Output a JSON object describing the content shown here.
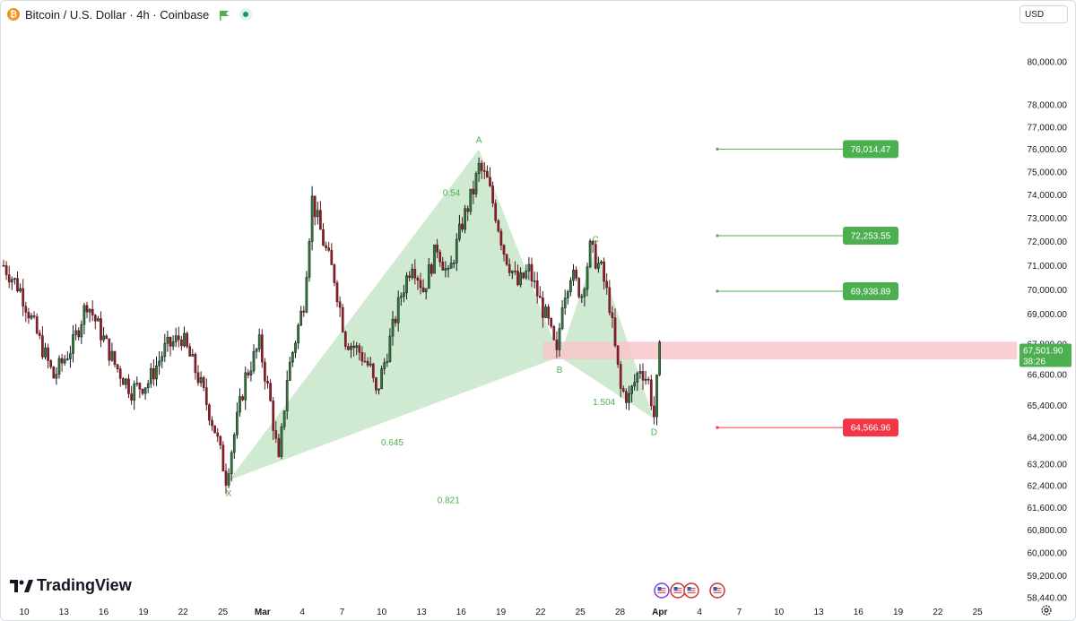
{
  "header": {
    "symbol_title": "Bitcoin / U.S. Dollar · 4h · Coinbase",
    "btc_icon": "bitcoin-icon",
    "flag_icon": "flag-icon",
    "live_icon": "live-status-icon",
    "currency": "USD"
  },
  "branding": {
    "logo_text": "TradingView"
  },
  "colors": {
    "up": "#089981",
    "down": "#f23645",
    "pattern_fill": "#c8e6c9",
    "pattern_text": "#4caf50",
    "target_green": "#4caf50",
    "stop_red": "#f23645",
    "zone": "#f8c7cc"
  },
  "chart_data": {
    "type": "candlestick",
    "title": "Bitcoin / U.S. Dollar · 4h · Coinbase",
    "y_axis": {
      "scale": "log",
      "ticks": [
        "80,000.00",
        "78,000.00",
        "77,000.00",
        "76,000.00",
        "75,000.00",
        "74,000.00",
        "73,000.00",
        "72,000.00",
        "71,000.00",
        "70,000.00",
        "69,000.00",
        "67,800.00",
        "66,600.00",
        "65,400.00",
        "64,200.00",
        "63,200.00",
        "62,400.00",
        "61,600.00",
        "60,800.00",
        "60,000.00",
        "59,200.00",
        "58,440.00"
      ]
    },
    "x_axis": {
      "ticks": [
        "10",
        "13",
        "16",
        "19",
        "22",
        "25",
        "Mar",
        "4",
        "7",
        "10",
        "13",
        "16",
        "19",
        "22",
        "25",
        "28",
        "Apr",
        "4",
        "7",
        "10",
        "13",
        "16",
        "19",
        "22",
        "25"
      ],
      "bold_ticks": [
        "Mar",
        "Apr"
      ]
    },
    "price_path": [
      [
        0,
        71000
      ],
      [
        6,
        70000
      ],
      [
        12,
        68200
      ],
      [
        18,
        66500
      ],
      [
        25,
        67800
      ],
      [
        30,
        69500
      ],
      [
        36,
        68000
      ],
      [
        40,
        67000
      ],
      [
        46,
        66000
      ],
      [
        52,
        66300
      ],
      [
        58,
        67600
      ],
      [
        64,
        68100
      ],
      [
        70,
        66500
      ],
      [
        76,
        64500
      ],
      [
        80,
        62700
      ],
      [
        81,
        63200
      ],
      [
        87,
        66500
      ],
      [
        92,
        67800
      ],
      [
        96,
        65500
      ],
      [
        99,
        63200
      ],
      [
        102,
        66500
      ],
      [
        108,
        69500
      ],
      [
        111,
        73800
      ],
      [
        115,
        72000
      ],
      [
        119,
        70500
      ],
      [
        123,
        68000
      ],
      [
        128,
        67500
      ],
      [
        132,
        66800
      ],
      [
        134,
        65800
      ],
      [
        138,
        67500
      ],
      [
        143,
        69800
      ],
      [
        147,
        71200
      ],
      [
        151,
        70000
      ],
      [
        156,
        71800
      ],
      [
        160,
        70500
      ],
      [
        165,
        72800
      ],
      [
        169,
        74200
      ],
      [
        171,
        75200
      ],
      [
        174,
        74600
      ],
      [
        177,
        73200
      ],
      [
        180,
        71600
      ],
      [
        185,
        70200
      ],
      [
        189,
        70800
      ],
      [
        193,
        69500
      ],
      [
        196,
        68600
      ],
      [
        199,
        67300
      ],
      [
        201,
        69600
      ],
      [
        204,
        70700
      ],
      [
        208,
        69800
      ],
      [
        211,
        71700
      ],
      [
        215,
        70800
      ],
      [
        218,
        69400
      ],
      [
        220,
        67600
      ],
      [
        222,
        66000
      ],
      [
        225,
        65700
      ],
      [
        229,
        66900
      ],
      [
        232,
        66300
      ],
      [
        234,
        65000
      ],
      [
        236,
        67500
      ]
    ],
    "harmonic_pattern": {
      "points": [
        {
          "label": "X",
          "t": 81,
          "price": 62600
        },
        {
          "label": "A",
          "t": 171,
          "price": 76000
        },
        {
          "label": "B",
          "t": 200,
          "price": 67300
        },
        {
          "label": "C",
          "t": 213,
          "price": 71700
        },
        {
          "label": "D",
          "t": 234,
          "price": 64900
        }
      ],
      "ratios": [
        {
          "label": "0.54"
        },
        {
          "label": "0.645"
        },
        {
          "label": "0.821"
        },
        {
          "label": "1.504"
        }
      ]
    },
    "levels": [
      {
        "label": "76,014.47",
        "kind": "target"
      },
      {
        "label": "72,253.55",
        "kind": "target"
      },
      {
        "label": "69,938.89",
        "kind": "target"
      },
      {
        "label": "64,566.96",
        "kind": "stop"
      }
    ],
    "current_price": {
      "label": "67,501.90",
      "countdown": "38:26"
    },
    "zone": {
      "low": 67200,
      "high": 67900
    }
  }
}
